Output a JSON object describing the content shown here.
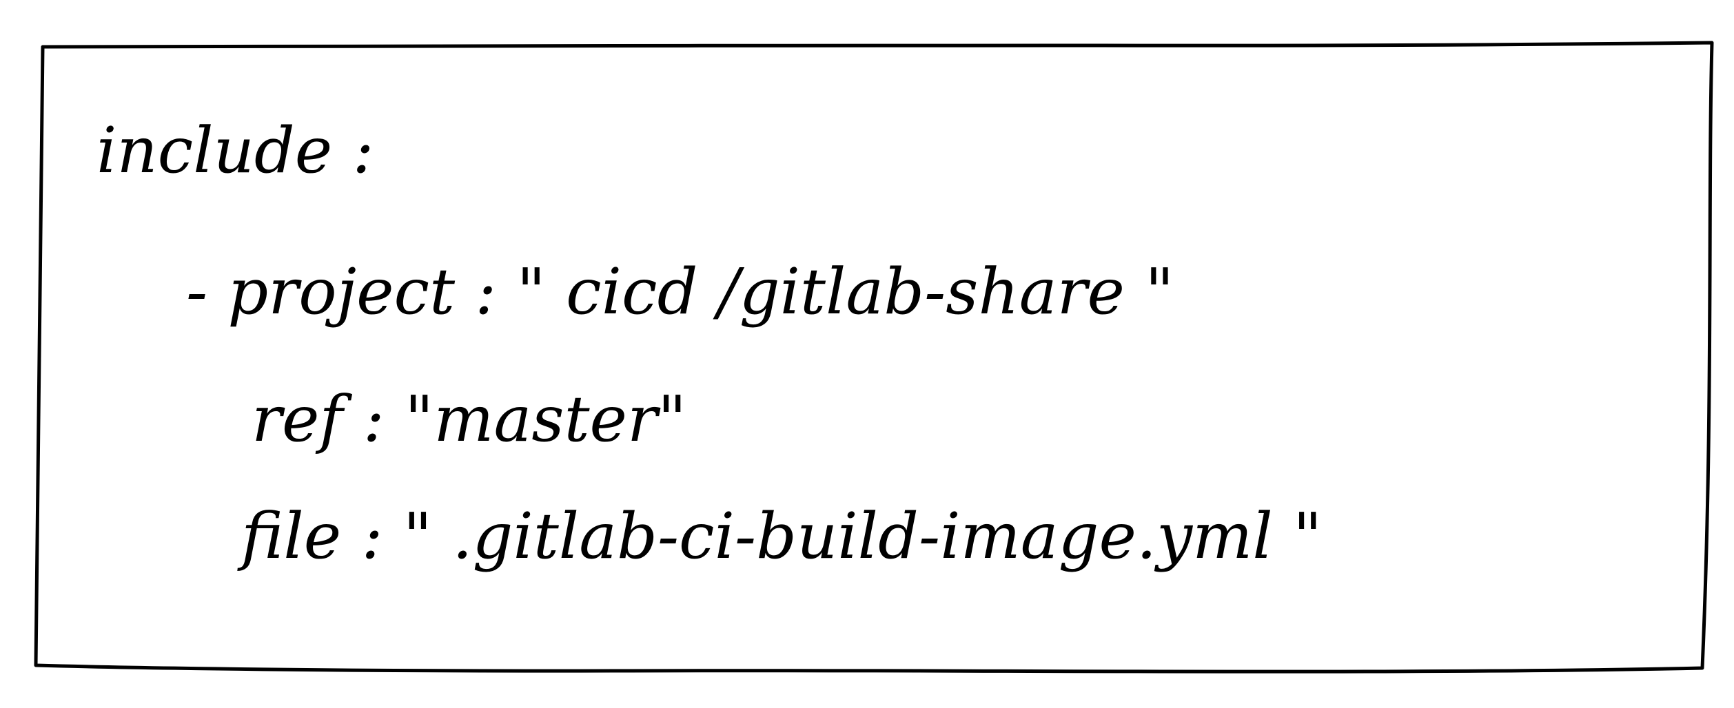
{
  "code_lines": [
    "include :",
    "- project : \" cicd /gitlab-share \"",
    "ref : \"master\"",
    "file : \" .gitlab-ci-build-image.yml \""
  ],
  "colors": {
    "background": "#ffffff",
    "ink": "#000000"
  }
}
